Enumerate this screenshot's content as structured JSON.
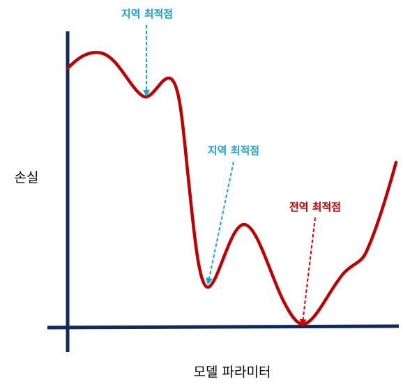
{
  "labels": {
    "y_axis": "손실",
    "x_axis": "모델 파라미터",
    "local_min_1": "지역 최적점",
    "local_min_2": "지역 최적점",
    "global_min": "전역 최적점"
  },
  "colors": {
    "axis": "#0f2a5c",
    "curve": "#c00000",
    "local_annotation": "#1aa3d9",
    "global_annotation": "#d40000"
  }
}
